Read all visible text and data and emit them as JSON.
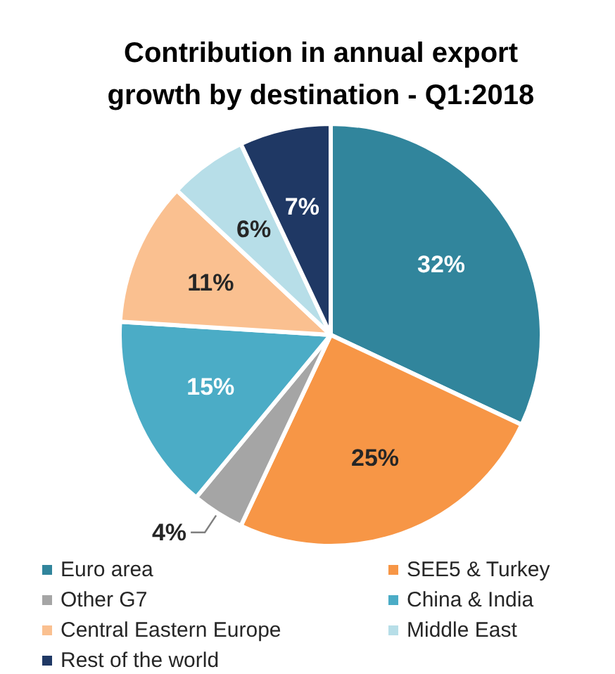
{
  "chart_data": {
    "type": "pie",
    "title": "Contribution in annual export growth by destination - Q1:2018",
    "categories": [
      "Euro area",
      "SEE5 & Turkey",
      "Other G7",
      "China & India",
      "Central Eastern Europe",
      "Middle East",
      "Rest of the world"
    ],
    "values": [
      32,
      25,
      4,
      15,
      11,
      6,
      7
    ],
    "value_labels": [
      "32%",
      "25%",
      "4%",
      "15%",
      "11%",
      "6%",
      "7%"
    ],
    "colors": [
      "#31859c",
      "#f79646",
      "#a5a5a5",
      "#4bacc6",
      "#fac090",
      "#b7dee8",
      "#1f3864"
    ],
    "legend": "bottom"
  }
}
